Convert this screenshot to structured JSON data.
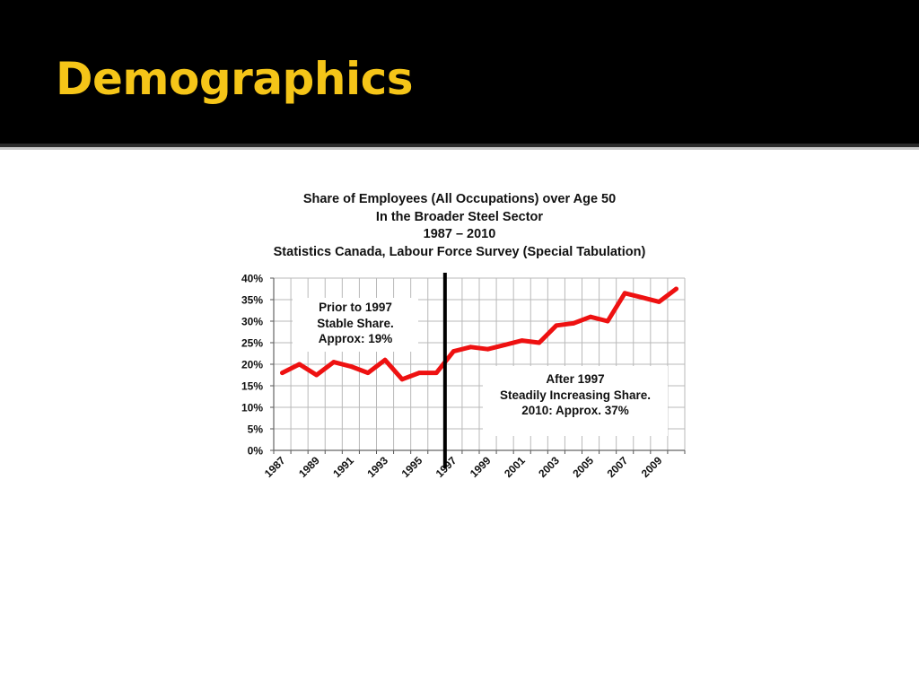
{
  "slide": {
    "title": "Demographics",
    "title_color": "#f5c518",
    "header_color": "#000000"
  },
  "chart_data": {
    "type": "line",
    "title": [
      "Share of Employees (All Occupations) over Age 50",
      "In the Broader Steel Sector",
      "1987 – 2010",
      "Statistics Canada, Labour Force Survey (Special Tabulation)"
    ],
    "xlabel": "",
    "ylabel": "",
    "x": [
      1987,
      1988,
      1989,
      1990,
      1991,
      1992,
      1993,
      1994,
      1995,
      1996,
      1997,
      1998,
      1999,
      2000,
      2001,
      2002,
      2003,
      2004,
      2005,
      2006,
      2007,
      2008,
      2009,
      2010
    ],
    "series": [
      {
        "color": "#ee1111",
        "values": [
          18,
          20,
          17.5,
          20.5,
          19.5,
          18,
          21,
          16.5,
          18,
          18,
          23,
          24,
          23.5,
          24.5,
          25.5,
          25,
          29,
          29.5,
          31,
          30,
          36.5,
          35.5,
          34.5,
          37.5
        ]
      }
    ],
    "xlim": [
      1986.5,
      2010.5
    ],
    "ylim": [
      0,
      40
    ],
    "yticks": [
      0,
      5,
      10,
      15,
      20,
      25,
      30,
      35,
      40
    ],
    "ytick_labels": [
      "0%",
      "5%",
      "10%",
      "15%",
      "20%",
      "25%",
      "30%",
      "35%",
      "40%"
    ],
    "xticks": [
      1987,
      1989,
      1991,
      1993,
      1995,
      1997,
      1999,
      2001,
      2003,
      2005,
      2007,
      2009
    ],
    "xtick_labels": [
      "1987",
      "1989",
      "1991",
      "1993",
      "1995",
      "1997",
      "1999",
      "2001",
      "2003",
      "2005",
      "2007",
      "2009"
    ],
    "grid": true,
    "divider_x": 1996.5,
    "annotations": [
      {
        "id": "before",
        "lines": [
          "Prior to 1997",
          "Stable Share.",
          "Approx: 19%"
        ]
      },
      {
        "id": "after",
        "lines": [
          "After 1997",
          "Steadily Increasing Share.",
          "2010: Approx. 37%"
        ]
      }
    ]
  }
}
